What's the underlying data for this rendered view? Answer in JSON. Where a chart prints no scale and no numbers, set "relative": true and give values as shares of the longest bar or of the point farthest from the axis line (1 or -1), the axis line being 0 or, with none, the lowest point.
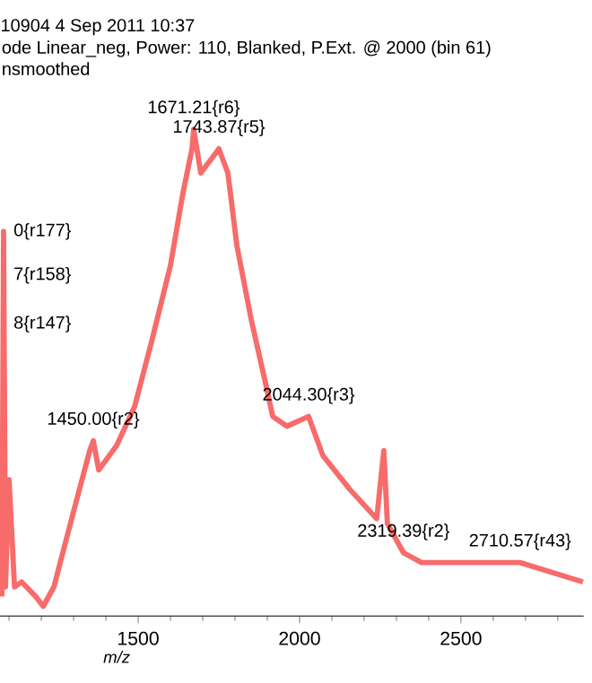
{
  "chart_data": {
    "type": "line",
    "title": "10904 4 Sep 2011 10:37",
    "subtitle": "ode Linear_neg, Power: 110, Blanked, P.Ext. @ 2000 (bin 61)",
    "xlabel": "m/z",
    "relative": true,
    "color": "#f76b6b",
    "xlim": [
      1072,
      2880
    ],
    "xticks": [
      {
        "value": 1100,
        "label": null
      },
      {
        "value": 1200,
        "label": null
      },
      {
        "value": 1300,
        "label": null
      },
      {
        "value": 1400,
        "label": null
      },
      1500,
      {
        "value": 1600,
        "label": null
      },
      {
        "value": 1700,
        "label": null
      },
      {
        "value": 1800,
        "label": null
      },
      {
        "value": 1900,
        "label": null
      },
      2000,
      {
        "value": 2100,
        "label": null
      },
      {
        "value": 2200,
        "label": null
      },
      {
        "value": 2300,
        "label": null
      },
      {
        "value": 2400,
        "label": null
      },
      2500,
      {
        "value": 2600,
        "label": null
      },
      {
        "value": 2700,
        "label": null
      },
      {
        "value": 2800,
        "label": null
      }
    ],
    "x": [
      1078,
      1083,
      1089,
      1100,
      1117,
      1139,
      1183,
      1206,
      1239,
      1294,
      1350,
      1361,
      1378,
      1433,
      1489,
      1544,
      1600,
      1639,
      1667,
      1672,
      1694,
      1728,
      1750,
      1778,
      1806,
      1850,
      1894,
      1917,
      1961,
      2028,
      2072,
      2156,
      2239,
      2261,
      2272,
      2322,
      2378,
      2517,
      2683,
      2878
    ],
    "values": [
      0.04,
      0.79,
      0.06,
      0.28,
      0.06,
      0.07,
      0.04,
      0.02,
      0.06,
      0.2,
      0.34,
      0.36,
      0.3,
      0.35,
      0.43,
      0.57,
      0.72,
      0.87,
      0.96,
      1,
      0.91,
      0.94,
      0.96,
      0.91,
      0.76,
      0.61,
      0.48,
      0.41,
      0.39,
      0.41,
      0.33,
      0.26,
      0.2,
      0.34,
      0.19,
      0.13,
      0.11,
      0.11,
      0.11,
      0.07
    ],
    "annotations": [
      "nsmoothed",
      {
        "text": "1671.21{r6}",
        "x": 1672,
        "y": 1
      },
      {
        "text": "1743.87{r5}",
        "x": 1750,
        "y": 0.96
      },
      {
        "text": "1450.00{r2}",
        "x": 1361,
        "y": 0.36
      },
      {
        "text": "2044.30{r3}",
        "x": 2028,
        "y": 0.41
      },
      {
        "text": "2319.39{r2}",
        "x": 2322,
        "y": 0.13
      },
      {
        "text": "2710.57{r43}",
        "x": 2683,
        "y": 0.11
      },
      {
        "text": "0{r177}",
        "x": 1083,
        "y": 0.79
      },
      {
        "text": "7{r158}",
        "x": 1083,
        "y": 0.7
      },
      {
        "text": "8{r147}",
        "x": 1083,
        "y": 0.6
      }
    ]
  }
}
